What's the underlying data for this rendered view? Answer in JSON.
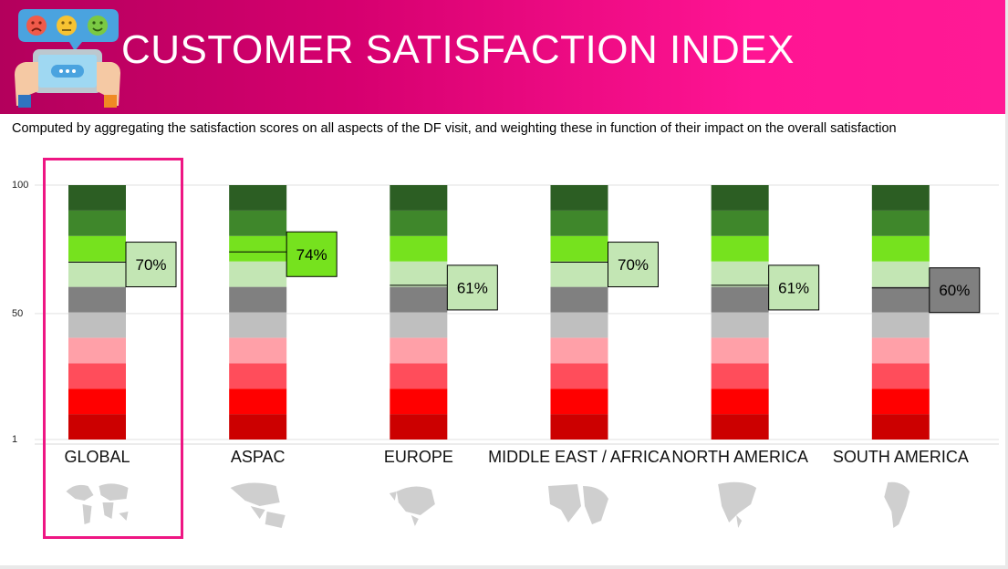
{
  "header": {
    "title": "CUSTOMER SATISFACTION INDEX",
    "subtitle": "Computed by aggregating the satisfaction scores on all aspects of the DF visit, and weighting these in function of their impact on the overall satisfaction",
    "colors": {
      "gradient_start": "#b3005c",
      "gradient_end": "#ff1a95"
    }
  },
  "chart_data": {
    "type": "bar",
    "title": "CUSTOMER SATISFACTION INDEX",
    "categories": [
      "GLOBAL",
      "ASPAC",
      "EUROPE",
      "MIDDLE EAST / AFRICA",
      "NORTH AMERICA",
      "SOUTH AMERICA"
    ],
    "values": [
      70,
      74,
      61,
      70,
      61,
      60
    ],
    "value_labels": [
      "70%",
      "74%",
      "61%",
      "70%",
      "61%",
      "60%"
    ],
    "ylim": [
      1,
      100
    ],
    "y_ticks": [
      "100",
      "50",
      "1"
    ],
    "band_colors": [
      "#cc0000",
      "#ff0000",
      "#ff4d5b",
      "#ffa0a8",
      "#bfbfbf",
      "#808080",
      "#c3e6b4",
      "#76e21e",
      "#3f872b",
      "#2c5e23"
    ],
    "highlighted_category": "GLOBAL",
    "maps": [
      "world-map-icon",
      "asia-pacific-map-icon",
      "europe-map-icon",
      "africa-map-icon",
      "north-america-map-icon",
      "south-america-map-icon"
    ],
    "grid": true
  }
}
